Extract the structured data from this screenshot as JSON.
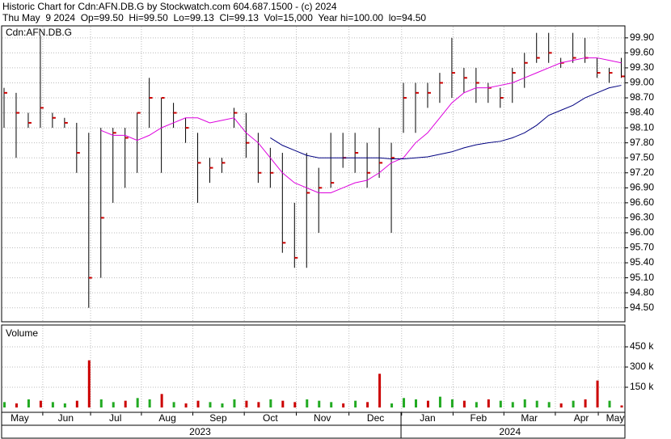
{
  "chart_data": [
    {
      "type": "ohlc",
      "title": "Historic Chart for Cdn:AFN.DB.G by Stockwatch.com 604.687.1500 - (c) 2024",
      "subtitle": "Thu May  9 2024  Op=99.50  Hi=99.50  Lo=99.13  Cl=99.13  Vol=15,000  Year hi=100.00  lo=94.50",
      "label": "Cdn:AFN.DB.G",
      "bar_color": "#000000",
      "close_color": "#cc0000",
      "grid": true,
      "high": [
        98.9,
        98.8,
        98.4,
        99.95,
        98.4,
        98.3,
        98.2,
        98.0,
        98.1,
        98.1,
        98.1,
        98.4,
        99.1,
        98.7,
        98.6,
        98.3,
        98.0,
        97.5,
        97.5,
        98.5,
        98.4,
        98.0,
        97.7,
        97.6,
        96.6,
        97.6,
        97.3,
        98.0,
        98.0,
        98.0,
        97.8,
        98.1,
        97.8,
        99.0,
        99.0,
        99.0,
        99.2,
        99.9,
        99.3,
        99.3,
        99.0,
        98.9,
        99.3,
        99.6,
        100.0,
        100.0,
        99.5,
        100.0,
        99.9,
        99.5,
        99.3,
        99.5
      ],
      "low": [
        98.1,
        97.5,
        98.1,
        98.1,
        98.1,
        98.1,
        97.2,
        94.5,
        95.1,
        96.6,
        96.9,
        97.2,
        98.1,
        97.2,
        98.1,
        97.8,
        96.6,
        97.0,
        97.2,
        98.1,
        97.5,
        97.0,
        96.9,
        95.6,
        95.3,
        95.3,
        96.0,
        96.9,
        97.3,
        97.2,
        96.9,
        97.1,
        96.0,
        98.0,
        98.0,
        98.5,
        98.6,
        98.7,
        98.8,
        98.6,
        98.6,
        98.5,
        98.6,
        98.9,
        99.4,
        99.4,
        99.3,
        99.4,
        99.4,
        99.1,
        99.0,
        99.1
      ],
      "close": [
        98.8,
        98.4,
        98.2,
        98.5,
        98.3,
        98.2,
        97.6,
        95.1,
        96.3,
        98.0,
        97.9,
        98.4,
        98.7,
        98.7,
        98.4,
        98.1,
        97.4,
        97.3,
        97.4,
        98.4,
        97.8,
        97.2,
        97.2,
        95.8,
        95.5,
        96.8,
        96.9,
        97.0,
        97.5,
        97.6,
        97.2,
        97.4,
        97.5,
        98.7,
        98.8,
        98.8,
        99.0,
        99.2,
        99.1,
        99.0,
        98.9,
        98.7,
        99.2,
        99.4,
        99.5,
        99.6,
        99.4,
        99.5,
        99.5,
        99.2,
        99.2,
        99.13
      ],
      "moving_averages": [
        {
          "color": "#dd00dd",
          "values": [
            null,
            null,
            null,
            null,
            null,
            null,
            null,
            null,
            98.05,
            97.95,
            97.95,
            97.85,
            97.95,
            98.1,
            98.2,
            98.3,
            98.3,
            98.2,
            98.25,
            98.3,
            98.0,
            97.8,
            97.5,
            97.2,
            97.0,
            96.9,
            96.8,
            96.8,
            96.9,
            97.0,
            97.05,
            97.2,
            97.4,
            97.5,
            97.8,
            98.0,
            98.3,
            98.6,
            98.8,
            98.9,
            98.9,
            98.95,
            99.0,
            99.1,
            99.2,
            99.3,
            99.4,
            99.45,
            99.5,
            99.5,
            99.45,
            99.4
          ]
        },
        {
          "color": "#000080",
          "values": [
            null,
            null,
            null,
            null,
            null,
            null,
            null,
            null,
            null,
            null,
            null,
            null,
            null,
            null,
            null,
            null,
            null,
            null,
            null,
            null,
            null,
            null,
            97.9,
            97.75,
            97.65,
            97.55,
            97.5,
            97.5,
            97.5,
            97.5,
            97.5,
            97.5,
            97.48,
            97.48,
            97.5,
            97.52,
            97.57,
            97.62,
            97.7,
            97.76,
            97.8,
            97.83,
            97.9,
            98.0,
            98.15,
            98.35,
            98.45,
            98.55,
            98.7,
            98.8,
            98.9,
            98.95
          ]
        }
      ],
      "ylim": [
        94.22,
        100.14
      ],
      "yticks": [
        {
          "value": 99.9,
          "label": "99.90"
        },
        {
          "value": 99.6,
          "label": "99.60"
        },
        {
          "value": 99.3,
          "label": "99.30"
        },
        {
          "value": 99.0,
          "label": "99.00"
        },
        {
          "value": 98.7,
          "label": "98.70"
        },
        {
          "value": 98.4,
          "label": "98.40"
        },
        {
          "value": 98.1,
          "label": "98.10"
        },
        {
          "value": 97.8,
          "label": "97.80"
        },
        {
          "value": 97.5,
          "label": "97.50"
        },
        {
          "value": 97.2,
          "label": "97.20"
        },
        {
          "value": 96.9,
          "label": "96.90"
        },
        {
          "value": 96.6,
          "label": "96.60"
        },
        {
          "value": 96.3,
          "label": "96.30"
        },
        {
          "value": 96.0,
          "label": "96.00"
        },
        {
          "value": 95.7,
          "label": "95.70"
        },
        {
          "value": 95.4,
          "label": "95.40"
        },
        {
          "value": 95.1,
          "label": "95.10"
        },
        {
          "value": 94.8,
          "label": "94.80"
        },
        {
          "value": 94.5,
          "label": "94.50"
        }
      ]
    },
    {
      "type": "bar",
      "label": "Volume",
      "grid": true,
      "values": [
        40000,
        30000,
        60000,
        50000,
        40000,
        30000,
        50000,
        350000,
        60000,
        40000,
        50000,
        70000,
        60000,
        100000,
        40000,
        30000,
        50000,
        40000,
        30000,
        60000,
        50000,
        40000,
        60000,
        50000,
        40000,
        60000,
        50000,
        40000,
        30000,
        50000,
        40000,
        250000,
        30000,
        70000,
        60000,
        50000,
        80000,
        60000,
        50000,
        40000,
        60000,
        50000,
        40000,
        60000,
        50000,
        40000,
        30000,
        50000,
        60000,
        200000,
        50000,
        15000
      ],
      "colors": [
        "#22aa22",
        "#cc0000",
        "#22aa22",
        "#cc0000",
        "#22aa22",
        "#22aa22",
        "#cc0000",
        "#cc0000",
        "#22aa22",
        "#22aa22",
        "#cc0000",
        "#22aa22",
        "#22aa22",
        "#cc0000",
        "#22aa22",
        "#cc0000",
        "#cc0000",
        "#22aa22",
        "#22aa22",
        "#22aa22",
        "#cc0000",
        "#cc0000",
        "#22aa22",
        "#cc0000",
        "#cc0000",
        "#22aa22",
        "#22aa22",
        "#22aa22",
        "#cc0000",
        "#22aa22",
        "#cc0000",
        "#cc0000",
        "#22aa22",
        "#22aa22",
        "#22aa22",
        "#cc0000",
        "#22aa22",
        "#22aa22",
        "#cc0000",
        "#22aa22",
        "#cc0000",
        "#22aa22",
        "#22aa22",
        "#22aa22",
        "#22aa22",
        "#22aa22",
        "#cc0000",
        "#22aa22",
        "#cc0000",
        "#cc0000",
        "#22aa22",
        "#cc0000"
      ],
      "ylim": [
        -36000,
        612000
      ],
      "yticks": [
        {
          "value": 450000,
          "label": "450 k"
        },
        {
          "value": 300000,
          "label": "300 k"
        },
        {
          "value": 150000,
          "label": "150 k"
        }
      ],
      "xlim": [
        -0.2,
        51.3
      ],
      "xticks": [
        {
          "value": 1.3,
          "label": "May"
        },
        {
          "value": 5.1,
          "label": "Jun"
        },
        {
          "value": 9.2,
          "label": "Jul"
        },
        {
          "value": 13.5,
          "label": "Aug"
        },
        {
          "value": 17.7,
          "label": "Sep"
        },
        {
          "value": 22,
          "label": "Oct"
        },
        {
          "value": 26.3,
          "label": "Nov"
        },
        {
          "value": 30.7,
          "label": "Dec"
        },
        {
          "value": 35,
          "label": "Jan"
        },
        {
          "value": 39.2,
          "label": "Feb"
        },
        {
          "value": 43.4,
          "label": "Mar"
        },
        {
          "value": 47.7,
          "label": "Apr"
        },
        {
          "value": 50.5,
          "label": "May"
        }
      ],
      "year_ticks": [
        {
          "value": 16.2,
          "label": "2023"
        },
        {
          "value": 41.8,
          "label": "2024"
        }
      ],
      "year_divider": 32.8
    }
  ]
}
